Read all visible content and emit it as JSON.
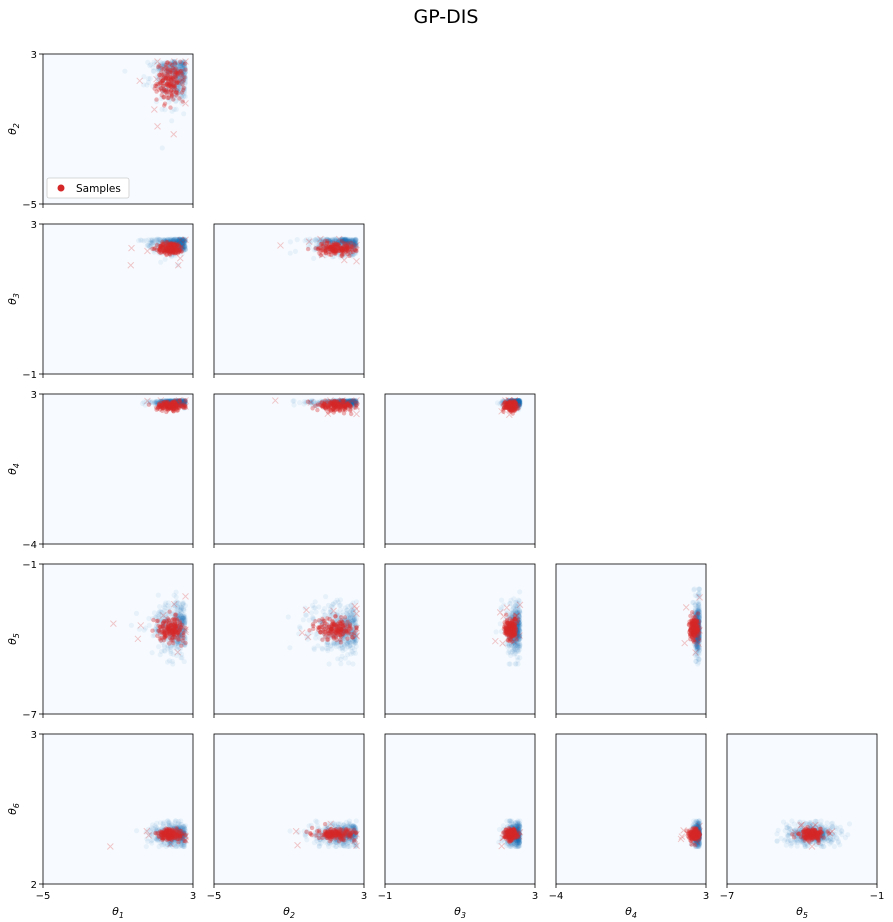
{
  "title": "GP-DIS",
  "legend": {
    "label": "Samples",
    "color": "#d62728",
    "placement": "lower-left"
  },
  "colors": {
    "density": "#1f77b4",
    "background": "#f7fbff",
    "samples": "#d62728"
  },
  "chart_data": {
    "type": "scatter",
    "layout": "corner-plot",
    "title": "GP-DIS",
    "parameters": [
      {
        "label": "θ1",
        "base": "θ",
        "sub": "1",
        "range": [
          -5,
          3
        ],
        "tick_labels": [
          "−5",
          "3"
        ]
      },
      {
        "label": "θ2",
        "base": "θ",
        "sub": "2",
        "range": [
          -5,
          3
        ],
        "tick_labels": [
          "−5",
          "3"
        ]
      },
      {
        "label": "θ3",
        "base": "θ",
        "sub": "3",
        "range": [
          -1,
          3
        ],
        "tick_labels": [
          "−1",
          "3"
        ]
      },
      {
        "label": "θ4",
        "base": "θ",
        "sub": "4",
        "range": [
          -4,
          3
        ],
        "tick_labels": [
          "−4",
          "3"
        ]
      },
      {
        "label": "θ5",
        "base": "θ",
        "sub": "5",
        "range": [
          -7,
          -1
        ],
        "tick_labels": [
          "−7",
          "−1"
        ]
      },
      {
        "label": "θ6",
        "base": "θ",
        "sub": "6",
        "range": [
          2,
          3
        ],
        "tick_labels": [
          "2",
          "3"
        ]
      }
    ],
    "sample_summary": [
      {
        "name": "θ1",
        "center": 1.8,
        "spread": 0.8,
        "min": -3.8,
        "max": 2.6
      },
      {
        "name": "θ2",
        "center": 1.5,
        "spread": 1.1,
        "min": -4.0,
        "max": 2.6
      },
      {
        "name": "θ3",
        "center": 2.35,
        "spread": 0.18,
        "min": 1.9,
        "max": 2.6
      },
      {
        "name": "θ4",
        "center": 2.45,
        "spread": 0.25,
        "min": 1.6,
        "max": 2.7
      },
      {
        "name": "θ5",
        "center": -3.6,
        "spread": 0.5,
        "min": -5.0,
        "max": -2.0
      },
      {
        "name": "θ6",
        "center": 2.33,
        "spread": 0.04,
        "min": 2.25,
        "max": 2.42
      }
    ],
    "series": [
      {
        "name": "density",
        "marker": "dot"
      },
      {
        "name": "Samples",
        "marker": "x"
      }
    ],
    "grid": false,
    "legend_placement": "lower-left"
  }
}
